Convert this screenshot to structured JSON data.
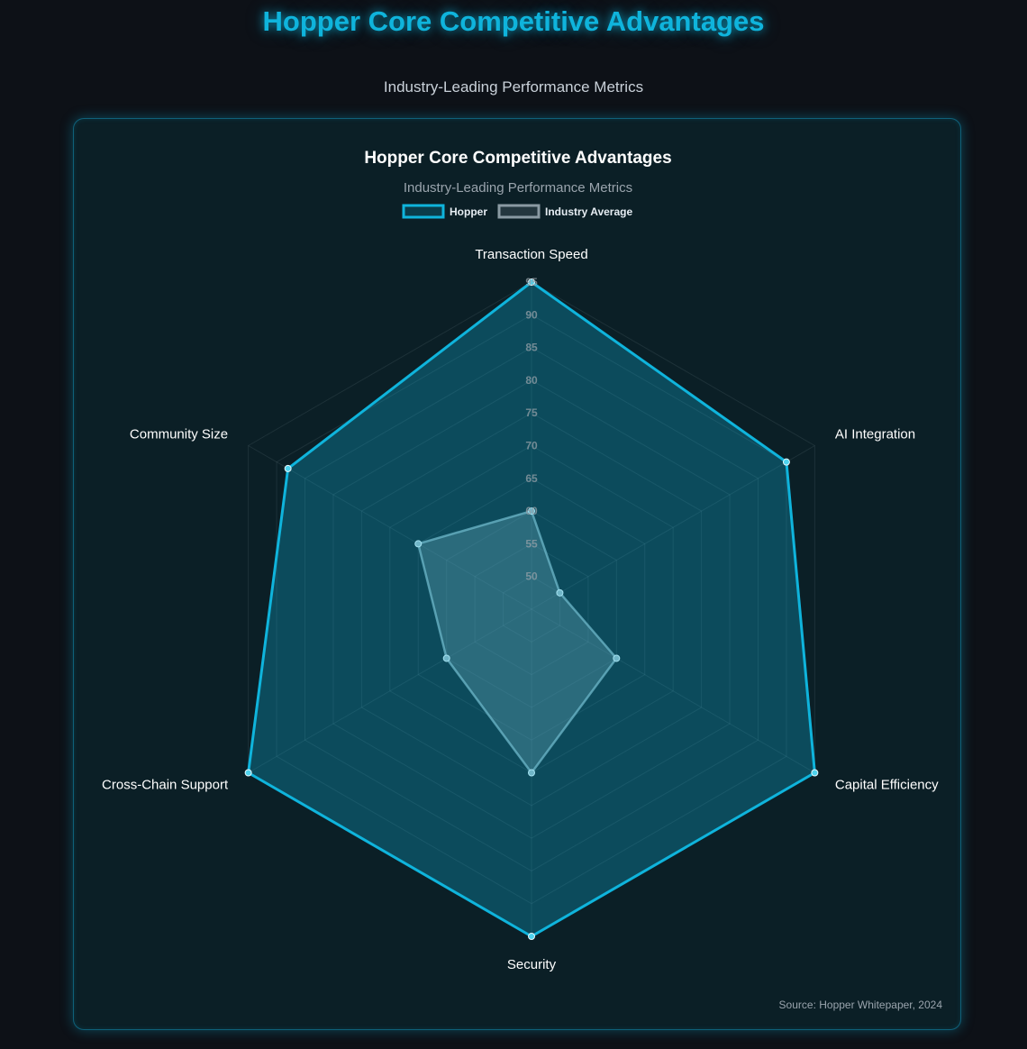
{
  "page": {
    "title": "Hopper Core Competitive Advantages",
    "subtitle": "Industry-Leading Performance Metrics"
  },
  "colors": {
    "accent": "#0fb4dc",
    "industry": "#7a8a92",
    "background": "#0d1117",
    "card": "#0b1f26"
  },
  "chart_data": {
    "type": "radar",
    "title": "Hopper Core Competitive Advantages",
    "subtitle": "Industry-Leading Performance Metrics",
    "legend_position": "top",
    "categories": [
      "Transaction Speed",
      "AI Integration",
      "Capital Efficiency",
      "Security",
      "Cross-Chain Support",
      "Community Size"
    ],
    "r_ticks": [
      50,
      55,
      60,
      65,
      70,
      75,
      80,
      85,
      90,
      95
    ],
    "r_range": [
      45,
      95
    ],
    "grid": true,
    "series": [
      {
        "name": "Hopper",
        "color": "#0fb4dc",
        "values": [
          95,
          90,
          95,
          95,
          95,
          88
        ]
      },
      {
        "name": "Industry Average",
        "color": "#8a9aa3",
        "values": [
          60,
          50,
          60,
          70,
          60,
          65
        ]
      }
    ]
  },
  "footer": {
    "source": "Source: Hopper Whitepaper, 2024"
  }
}
